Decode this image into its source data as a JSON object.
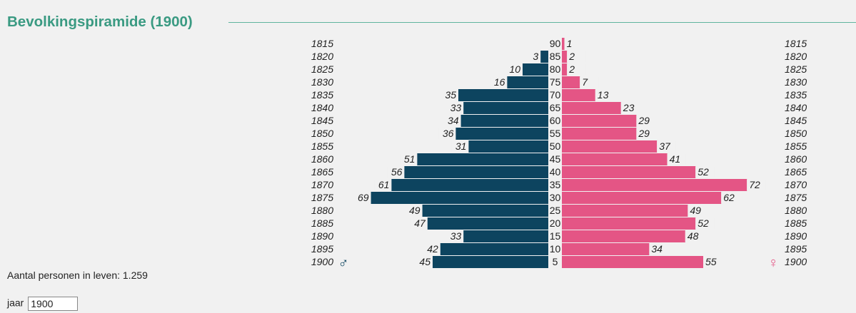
{
  "title": "Bevolkingspiramide (1900)",
  "total": {
    "label": "Aantal personen in leven:",
    "value": "1.259"
  },
  "year_field": {
    "label": "jaar",
    "value": "1900"
  },
  "symbols": {
    "male": "♂",
    "female": "♀"
  },
  "colors": {
    "male": "#0d445f",
    "female": "#e45585",
    "accent": "#3a9a82"
  },
  "chart_data": {
    "type": "bar",
    "orientation": "horizontal",
    "layout": "population-pyramid",
    "birth_years": [
      "1815",
      "1820",
      "1825",
      "1830",
      "1835",
      "1840",
      "1845",
      "1850",
      "1855",
      "1860",
      "1865",
      "1870",
      "1875",
      "1880",
      "1885",
      "1890",
      "1895",
      "1900"
    ],
    "ages": [
      "90",
      "85",
      "80",
      "75",
      "70",
      "65",
      "60",
      "55",
      "50",
      "45",
      "40",
      "35",
      "30",
      "25",
      "20",
      "15",
      "10",
      "5"
    ],
    "series": [
      {
        "name": "♂",
        "color": "#0d445f",
        "values": [
          0,
          3,
          10,
          16,
          35,
          33,
          34,
          36,
          31,
          51,
          56,
          61,
          69,
          49,
          47,
          33,
          42,
          45
        ]
      },
      {
        "name": "♀",
        "color": "#e45585",
        "values": [
          1,
          2,
          2,
          7,
          13,
          23,
          29,
          29,
          37,
          41,
          52,
          72,
          62,
          49,
          52,
          48,
          34,
          55
        ]
      }
    ],
    "xlim": [
      0,
      72
    ]
  }
}
